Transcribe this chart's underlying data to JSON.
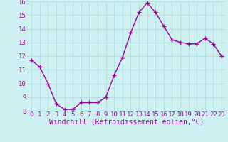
{
  "x": [
    0,
    1,
    2,
    3,
    4,
    5,
    6,
    7,
    8,
    9,
    10,
    11,
    12,
    13,
    14,
    15,
    16,
    17,
    18,
    19,
    20,
    21,
    22,
    23
  ],
  "y": [
    11.7,
    11.2,
    10.0,
    8.5,
    8.1,
    8.1,
    8.6,
    8.6,
    8.6,
    9.0,
    10.6,
    11.9,
    13.7,
    15.2,
    15.9,
    15.2,
    14.2,
    13.2,
    13.0,
    12.9,
    12.9,
    13.3,
    12.9,
    12.0
  ],
  "line_color": "#990099",
  "marker": "+",
  "marker_size": 4,
  "marker_linewidth": 1.0,
  "linewidth": 1.0,
  "xlabel": "Windchill (Refroidissement éolien,°C)",
  "xlim": [
    -0.5,
    23.5
  ],
  "ylim": [
    8,
    16
  ],
  "yticks": [
    8,
    9,
    10,
    11,
    12,
    13,
    14,
    15,
    16
  ],
  "xticks": [
    0,
    1,
    2,
    3,
    4,
    5,
    6,
    7,
    8,
    9,
    10,
    11,
    12,
    13,
    14,
    15,
    16,
    17,
    18,
    19,
    20,
    21,
    22,
    23
  ],
  "bg_color": "#cff0f0",
  "grid_color": "#b0e0e0",
  "tick_label_color": "#990099",
  "xlabel_color": "#990099",
  "xlabel_fontsize": 7,
  "tick_fontsize": 6.5,
  "figsize": [
    3.2,
    2.0
  ],
  "dpi": 100
}
